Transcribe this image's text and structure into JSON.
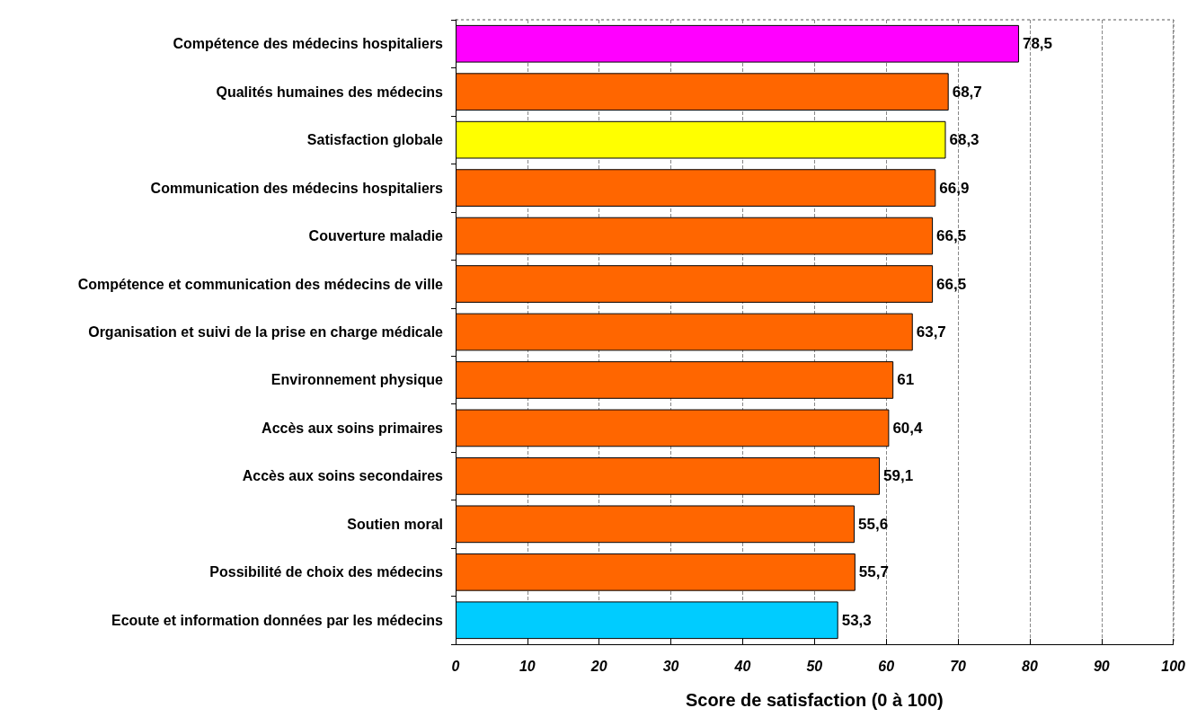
{
  "chart_data": {
    "type": "bar",
    "orientation": "horizontal",
    "xlabel": "Score de satisfaction (0 à 100)",
    "categories": [
      "Compétence des médecins hospitaliers",
      "Qualités humaines des médecins",
      "Satisfaction globale",
      "Communication des médecins hospitaliers",
      "Couverture maladie",
      "Compétence et communication des médecins de ville",
      "Organisation et suivi de la prise en charge médicale",
      "Environnement physique",
      "Accès aux soins primaires",
      "Accès aux soins secondaires",
      "Soutien moral",
      "Possibilité de choix des médecins",
      "Ecoute et information données par les médecins"
    ],
    "values": [
      78.5,
      68.7,
      68.3,
      66.9,
      66.5,
      66.5,
      63.7,
      61,
      60.4,
      59.1,
      55.6,
      55.7,
      53.3
    ],
    "value_labels": [
      "78,5",
      "68,7",
      "68,3",
      "66,9",
      "66,5",
      "66,5",
      "63,7",
      "61",
      "60,4",
      "59,1",
      "55,6",
      "55,7",
      "53,3"
    ],
    "colors": [
      "#ff00ff",
      "#ff6600",
      "#ffff00",
      "#ff6600",
      "#ff6600",
      "#ff6600",
      "#ff6600",
      "#ff6600",
      "#ff6600",
      "#ff6600",
      "#ff6600",
      "#ff6600",
      "#00ccff"
    ],
    "xlim": [
      0,
      100
    ],
    "xticks": [
      0,
      10,
      20,
      30,
      40,
      50,
      60,
      70,
      80,
      90,
      100
    ],
    "grid": "x"
  }
}
